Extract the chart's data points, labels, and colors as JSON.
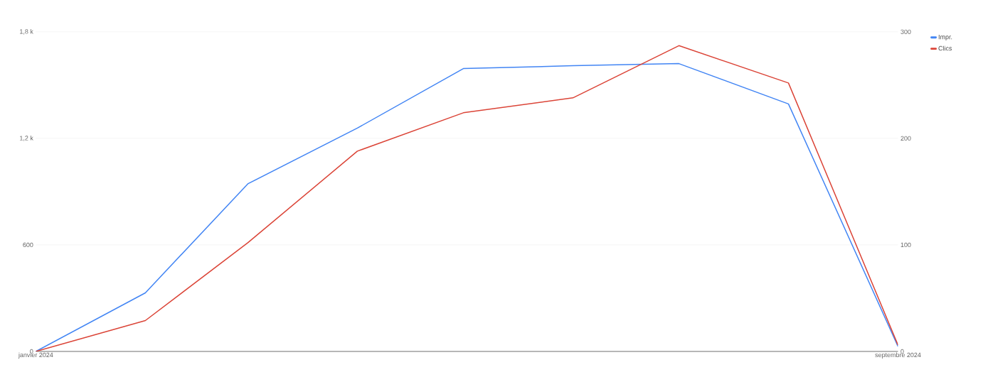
{
  "chart_data": {
    "type": "line",
    "x": [
      "2024-01",
      "2024-02",
      "2024-03",
      "2024-04",
      "2024-05",
      "2024-06",
      "2024-07",
      "2024-08",
      "2024-09"
    ],
    "series": [
      {
        "name": "Impr.",
        "color": "#4285f4",
        "values": [
          0,
          330,
          944,
          1258,
          1593,
          1609,
          1621,
          1394,
          28
        ]
      },
      {
        "name": "Clics",
        "color": "#db4437",
        "axis": "y2",
        "values": [
          0,
          29,
          102,
          188,
          224,
          238,
          287,
          252,
          6
        ]
      }
    ],
    "xlim": [
      "2024-01",
      "2024-09"
    ],
    "xticks": [
      {
        "value": "2024-01",
        "label": "janvier 2024"
      },
      {
        "value": "2024-09",
        "label": "septembre 2024"
      }
    ],
    "ylim": [
      0,
      1800
    ],
    "yticks": [
      0,
      600,
      {
        "value": 1200,
        "label": "1,2 k"
      },
      {
        "value": 1800,
        "label": "1,8 k"
      }
    ],
    "y2lim": [
      0,
      300
    ],
    "y2ticks": [
      0,
      100,
      200,
      300
    ],
    "grid": "y",
    "legend": "top right",
    "marker": "none",
    "line_style": "solid"
  }
}
